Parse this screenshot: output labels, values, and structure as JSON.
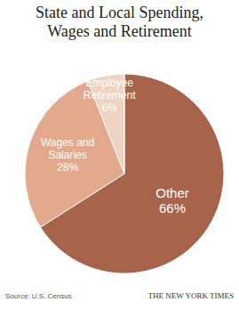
{
  "chart_data": {
    "type": "pie",
    "title": "State and Local Spending, Wages and Retirement",
    "categories": [
      "Other",
      "Wages and Salaries",
      "Employee Retirement"
    ],
    "values": [
      66,
      28,
      6
    ],
    "value_labels": [
      "66%",
      "28%",
      "6%"
    ],
    "colors": [
      "#a8634b",
      "#e3a98d",
      "#efd3c1"
    ],
    "data_labels": true,
    "annotations": [
      "Source: U.S. Census",
      "THE NEW YORK TIMES"
    ]
  }
}
